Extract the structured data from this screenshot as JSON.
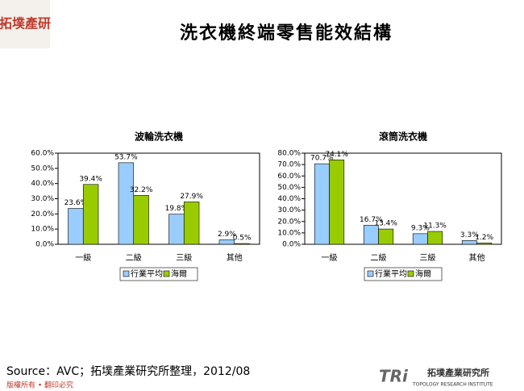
{
  "header": {
    "title": "洗衣機終端零售能效結構",
    "logo": "拓墣產研"
  },
  "footer": {
    "source": "Source：AVC；拓墣產業研究所整理，2012/08",
    "copyright": "版權所有 • 翻印必究",
    "brand": "TRi",
    "brand_name": "拓墣產業研究所",
    "brand_sub": "TOPOLOGY RESEARCH INSTITUTE"
  },
  "chart_data": [
    {
      "type": "bar",
      "title": "波輪洗衣機",
      "categories": [
        "一級",
        "二級",
        "三級",
        "其他"
      ],
      "series": [
        {
          "name": "行業平均",
          "color": "#99ccff",
          "values": [
            23.6,
            53.7,
            19.8,
            2.9
          ],
          "value_labels": [
            "23.6%",
            "53.7%",
            "19.8%",
            "2.9%"
          ]
        },
        {
          "name": "海爾",
          "color": "#99cc00",
          "values": [
            39.4,
            32.2,
            27.9,
            0.5
          ],
          "value_labels": [
            "39.4%",
            "32.2%",
            "27.9%",
            "0.5%"
          ]
        }
      ],
      "ylim": [
        0,
        60
      ],
      "yticks": [
        {
          "value": 0,
          "label": "0.0%"
        },
        {
          "value": 10,
          "label": "10.0%"
        },
        {
          "value": 20,
          "label": "20.0%"
        },
        {
          "value": 30,
          "label": "30.0%"
        },
        {
          "value": 40,
          "label": "40.0%"
        },
        {
          "value": 50,
          "label": "50.0%"
        },
        {
          "value": 60,
          "label": "60.0%"
        }
      ],
      "legend": "bottom"
    },
    {
      "type": "bar",
      "title": "滾筒洗衣機",
      "categories": [
        "一級",
        "二級",
        "三級",
        "其他"
      ],
      "series": [
        {
          "name": "行業平均",
          "color": "#99ccff",
          "values": [
            70.7,
            16.7,
            9.3,
            3.3
          ],
          "value_labels": [
            "70.7%",
            "16.7%",
            "9.3%",
            "3.3%"
          ]
        },
        {
          "name": "海爾",
          "color": "#99cc00",
          "values": [
            74.1,
            13.4,
            11.3,
            1.2
          ],
          "value_labels": [
            "74.1%",
            "13.4%",
            "11.3%",
            "1.2%"
          ]
        }
      ],
      "ylim": [
        0,
        80
      ],
      "yticks": [
        {
          "value": 0,
          "label": "0.0%"
        },
        {
          "value": 10,
          "label": "10.0%"
        },
        {
          "value": 20,
          "label": "20.0%"
        },
        {
          "value": 30,
          "label": "30.0%"
        },
        {
          "value": 40,
          "label": "40.0%"
        },
        {
          "value": 50,
          "label": "50.0%"
        },
        {
          "value": 60,
          "label": "60.0%"
        },
        {
          "value": 70,
          "label": "70.0%"
        },
        {
          "value": 80,
          "label": "80.0%"
        }
      ],
      "legend": "bottom"
    }
  ]
}
